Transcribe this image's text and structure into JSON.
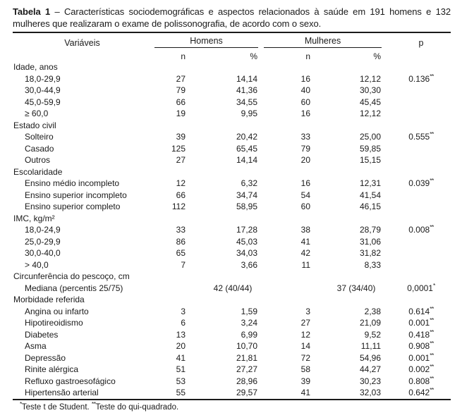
{
  "title": {
    "label": "Tabela 1",
    "separator": " – ",
    "text": "Características sociodemográficas e aspectos relacionados à saúde em 191 homens e 132 mulheres que realizaram o exame de polissonografia, de acordo com o sexo."
  },
  "table": {
    "headers": {
      "variables": "Variáveis",
      "men": "Homens",
      "women": "Mulheres",
      "p": "p",
      "n": "n",
      "percent": "%"
    },
    "sections": [
      {
        "label": "Idade, anos",
        "rows": [
          {
            "label": "18,0-29,9",
            "men_n": "27",
            "men_pct": "14,14",
            "women_n": "16",
            "women_pct": "12,12",
            "p": "0.136",
            "p_mark": "**"
          },
          {
            "label": "30,0-44,9",
            "men_n": "79",
            "men_pct": "41,36",
            "women_n": "40",
            "women_pct": "30,30",
            "p": "",
            "p_mark": ""
          },
          {
            "label": "45,0-59,9",
            "men_n": "66",
            "men_pct": "34,55",
            "women_n": "60",
            "women_pct": "45,45",
            "p": "",
            "p_mark": ""
          },
          {
            "label": "≥ 60,0",
            "men_n": "19",
            "men_pct": "9,95",
            "women_n": "16",
            "women_pct": "12,12",
            "p": "",
            "p_mark": ""
          }
        ]
      },
      {
        "label": "Estado civil",
        "rows": [
          {
            "label": "Solteiro",
            "men_n": "39",
            "men_pct": "20,42",
            "women_n": "33",
            "women_pct": "25,00",
            "p": "0.555",
            "p_mark": "**"
          },
          {
            "label": "Casado",
            "men_n": "125",
            "men_pct": "65,45",
            "women_n": "79",
            "women_pct": "59,85",
            "p": "",
            "p_mark": ""
          },
          {
            "label": "Outros",
            "men_n": "27",
            "men_pct": "14,14",
            "women_n": "20",
            "women_pct": "15,15",
            "p": "",
            "p_mark": ""
          }
        ]
      },
      {
        "label": "Escolaridade",
        "rows": [
          {
            "label": "Ensino médio incompleto",
            "men_n": "12",
            "men_pct": "6,32",
            "women_n": "16",
            "women_pct": "12,31",
            "p": "0.039",
            "p_mark": "**"
          },
          {
            "label": "Ensino superior incompleto",
            "men_n": "66",
            "men_pct": "34,74",
            "women_n": "54",
            "women_pct": "41,54",
            "p": "",
            "p_mark": ""
          },
          {
            "label": "Ensino superior completo",
            "men_n": "112",
            "men_pct": "58,95",
            "women_n": "60",
            "women_pct": "46,15",
            "p": "",
            "p_mark": ""
          }
        ]
      },
      {
        "label": "IMC, kg/m²",
        "rows": [
          {
            "label": "18,0-24,9",
            "men_n": "33",
            "men_pct": "17,28",
            "women_n": "38",
            "women_pct": "28,79",
            "p": "0.008",
            "p_mark": "**"
          },
          {
            "label": "25,0-29,9",
            "men_n": "86",
            "men_pct": "45,03",
            "women_n": "41",
            "women_pct": "31,06",
            "p": "",
            "p_mark": ""
          },
          {
            "label": "30,0-40,0",
            "men_n": "65",
            "men_pct": "34,03",
            "women_n": "42",
            "women_pct": "31,82",
            "p": "",
            "p_mark": ""
          },
          {
            "label": "> 40,0",
            "men_n": "7",
            "men_pct": "3,66",
            "women_n": "11",
            "women_pct": "8,33",
            "p": "",
            "p_mark": ""
          }
        ]
      },
      {
        "label": "Circunferência do pescoço, cm",
        "rows": [
          {
            "label": "Mediana (percentis 25/75)",
            "span": true,
            "men_value": "42 (40/44)",
            "women_value": "37 (34/40)",
            "p": "0,0001",
            "p_mark": "*"
          }
        ]
      },
      {
        "label": "Morbidade referida",
        "rows": [
          {
            "label": "Angina ou infarto",
            "men_n": "3",
            "men_pct": "1,59",
            "women_n": "3",
            "women_pct": "2,38",
            "p": "0.614",
            "p_mark": "**"
          },
          {
            "label": "Hipotireoidismo",
            "men_n": "6",
            "men_pct": "3,24",
            "women_n": "27",
            "women_pct": "21,09",
            "p": "0.001",
            "p_mark": "**"
          },
          {
            "label": "Diabetes",
            "men_n": "13",
            "men_pct": "6,99",
            "women_n": "12",
            "women_pct": "9,52",
            "p": "0.418",
            "p_mark": "**"
          },
          {
            "label": "Asma",
            "men_n": "20",
            "men_pct": "10,70",
            "women_n": "14",
            "women_pct": "11,11",
            "p": "0.908",
            "p_mark": "**"
          },
          {
            "label": "Depressão",
            "men_n": "41",
            "men_pct": "21,81",
            "women_n": "72",
            "women_pct": "54,96",
            "p": "0.001",
            "p_mark": "**"
          },
          {
            "label": "Rinite alérgica",
            "men_n": "51",
            "men_pct": "27,27",
            "women_n": "58",
            "women_pct": "44,27",
            "p": "0.002",
            "p_mark": "**"
          },
          {
            "label": "Refluxo gastroesofágico",
            "men_n": "53",
            "men_pct": "28,96",
            "women_n": "39",
            "women_pct": "30,23",
            "p": "0.808",
            "p_mark": "**"
          },
          {
            "label": "Hipertensão arterial",
            "men_n": "55",
            "men_pct": "29,57",
            "women_n": "41",
            "women_pct": "32,03",
            "p": "0.642",
            "p_mark": "**"
          }
        ]
      }
    ]
  },
  "footnote": {
    "mark1": "*",
    "text1": "Teste t de Student. ",
    "mark2": "**",
    "text2": "Teste do qui-quadrado."
  }
}
